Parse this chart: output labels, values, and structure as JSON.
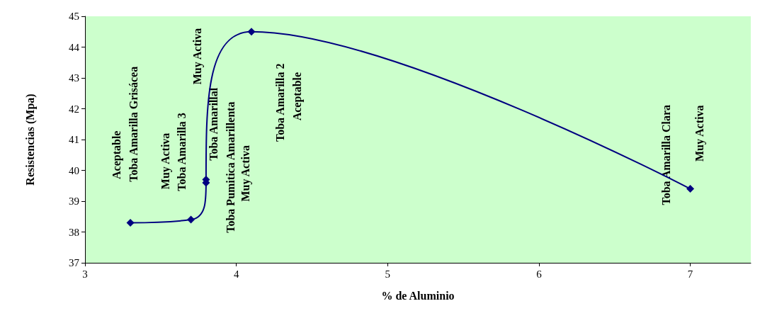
{
  "chart_data": {
    "type": "line",
    "xlabel": "% de Aluminio",
    "ylabel": "Resistencias (Mpa)",
    "x": [
      3.3,
      3.7,
      3.8,
      3.8,
      4.1,
      7
    ],
    "series": [
      {
        "color": "#000080",
        "values": [
          38.3,
          38.4,
          39.6,
          39.7,
          44.5,
          39.4
        ]
      }
    ],
    "xlim": [
      3,
      7.4
    ],
    "xticks": [
      3,
      4,
      5,
      6,
      7
    ],
    "ylim": [
      37,
      45
    ],
    "yticks": [
      37,
      38,
      39,
      40,
      41,
      42,
      43,
      44,
      45
    ],
    "grid": false,
    "marker": "diamond",
    "line_style": "solid",
    "annotations": [
      "Aceptable",
      "Toba Amarilla Grisácea",
      "Muy Activa",
      "Toba Amarilla 3",
      "Muy Activa",
      "Toba Amarillal",
      "Toba Pumitica Amarillenta",
      "Muy Activa",
      "Toba Amarilla 2",
      "Aceptable",
      "Toba Amarilla Clara",
      "Muy Activa"
    ]
  }
}
